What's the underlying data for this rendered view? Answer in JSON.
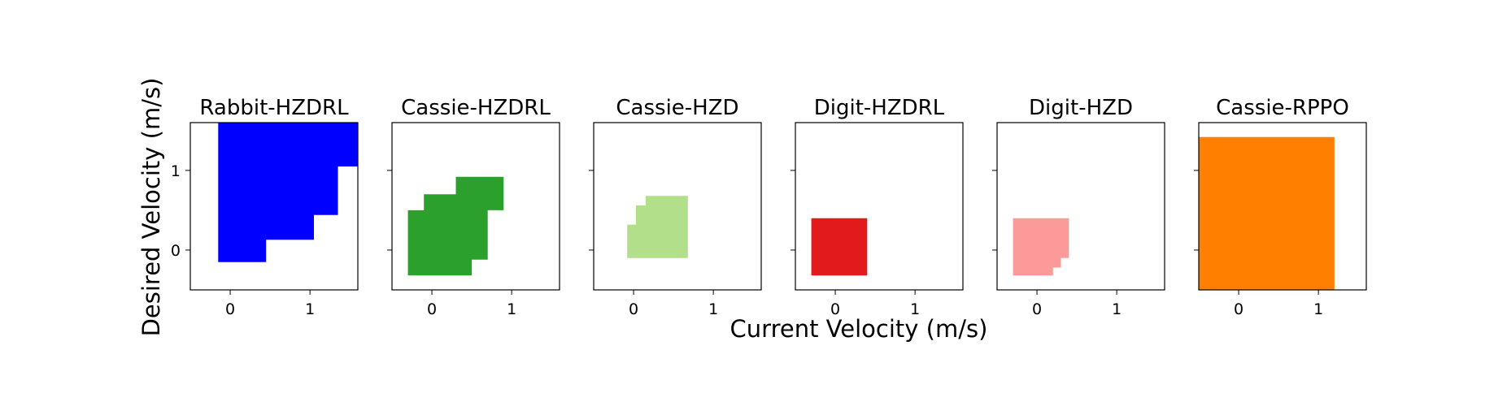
{
  "chart_data": {
    "type": "area",
    "xlabel": "Current Velocity (m/s)",
    "ylabel": "Desired Velocity (m/s)",
    "xlim": [
      -0.5,
      1.6
    ],
    "ylim": [
      -0.5,
      1.6
    ],
    "xticks": [
      "0",
      "1"
    ],
    "yticks": [
      "0",
      "1"
    ],
    "grid": false,
    "panels": [
      {
        "title": "Rabbit-HZDRL",
        "color": "#0000ff",
        "region": [
          [
            -0.15,
            -0.15
          ],
          [
            0.45,
            -0.15
          ],
          [
            0.45,
            0.13
          ],
          [
            1.05,
            0.13
          ],
          [
            1.05,
            0.44
          ],
          [
            1.35,
            0.44
          ],
          [
            1.35,
            1.05
          ],
          [
            1.6,
            1.05
          ],
          [
            1.6,
            1.6
          ],
          [
            -0.15,
            1.6
          ]
        ]
      },
      {
        "title": "Cassie-HZDRL",
        "color": "#2ca02c",
        "region": [
          [
            -0.3,
            -0.32
          ],
          [
            0.5,
            -0.32
          ],
          [
            0.5,
            -0.12
          ],
          [
            0.7,
            -0.12
          ],
          [
            0.7,
            0.5
          ],
          [
            0.9,
            0.5
          ],
          [
            0.9,
            0.92
          ],
          [
            0.3,
            0.92
          ],
          [
            0.3,
            0.7
          ],
          [
            -0.1,
            0.7
          ],
          [
            -0.1,
            0.5
          ],
          [
            -0.3,
            0.5
          ]
        ]
      },
      {
        "title": "Cassie-HZD",
        "color": "#b2df8a",
        "region": [
          [
            -0.08,
            -0.1
          ],
          [
            0.68,
            -0.1
          ],
          [
            0.68,
            0.68
          ],
          [
            0.15,
            0.68
          ],
          [
            0.15,
            0.56
          ],
          [
            0.03,
            0.56
          ],
          [
            0.03,
            0.32
          ],
          [
            -0.08,
            0.32
          ]
        ]
      },
      {
        "title": "Digit-HZDRL",
        "color": "#e31a1c",
        "region": [
          [
            -0.3,
            -0.32
          ],
          [
            0.4,
            -0.32
          ],
          [
            0.4,
            0.4
          ],
          [
            -0.3,
            0.4
          ]
        ]
      },
      {
        "title": "Digit-HZD",
        "color": "#fb9a99",
        "region": [
          [
            -0.3,
            -0.32
          ],
          [
            0.2,
            -0.32
          ],
          [
            0.2,
            -0.22
          ],
          [
            0.3,
            -0.22
          ],
          [
            0.3,
            -0.1
          ],
          [
            0.4,
            -0.1
          ],
          [
            0.4,
            0.4
          ],
          [
            -0.3,
            0.4
          ]
        ]
      },
      {
        "title": "Cassie-RPPO",
        "color": "#ff7f00",
        "region": [
          [
            -0.5,
            -0.5
          ],
          [
            1.2,
            -0.5
          ],
          [
            1.2,
            1.42
          ],
          [
            -0.5,
            1.42
          ]
        ]
      }
    ]
  }
}
